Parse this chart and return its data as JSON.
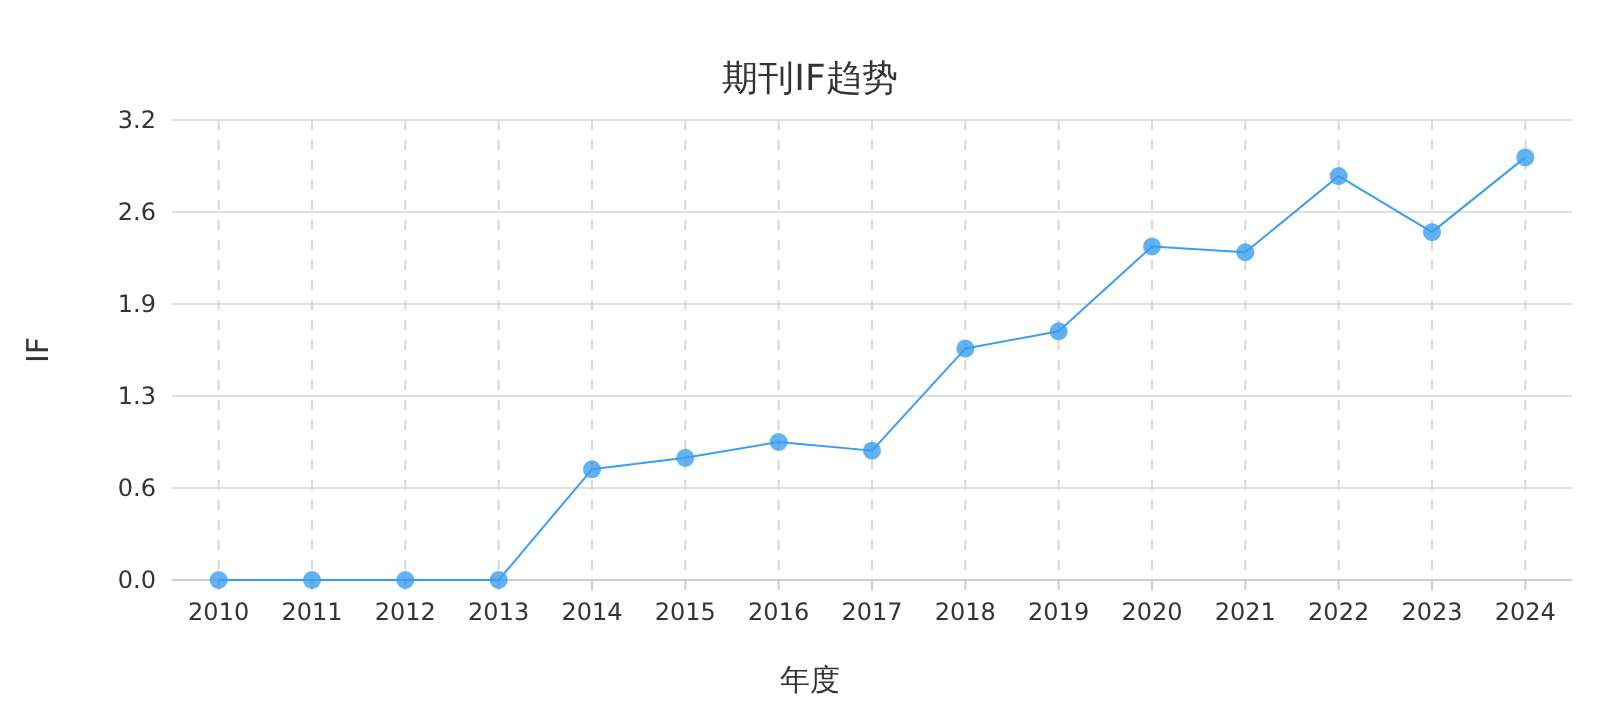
{
  "chart_data": {
    "type": "line",
    "title": "期刊IF趋势",
    "xlabel": "年度",
    "ylabel": "IF",
    "categories": [
      "2010",
      "2011",
      "2012",
      "2013",
      "2014",
      "2015",
      "2016",
      "2017",
      "2018",
      "2019",
      "2020",
      "2021",
      "2022",
      "2023",
      "2024"
    ],
    "series": [
      {
        "color": "#3a9ef0",
        "values": [
          0,
          0,
          0,
          0,
          0.77,
          0.85,
          0.96,
          0.9,
          1.61,
          1.73,
          2.32,
          2.28,
          2.81,
          2.42,
          2.94
        ]
      }
    ],
    "ylim": [
      0,
      3.2
    ],
    "yticks": [
      {
        "value": 0,
        "label": "0.0"
      },
      {
        "value": 0.64,
        "label": "0.6"
      },
      {
        "value": 1.28,
        "label": "1.3"
      },
      {
        "value": 1.92,
        "label": "1.9"
      },
      {
        "value": 2.56,
        "label": "2.6"
      },
      {
        "value": 3.2,
        "label": "3.2"
      }
    ],
    "grid": true,
    "marker": "circle",
    "line_style": "solid"
  }
}
